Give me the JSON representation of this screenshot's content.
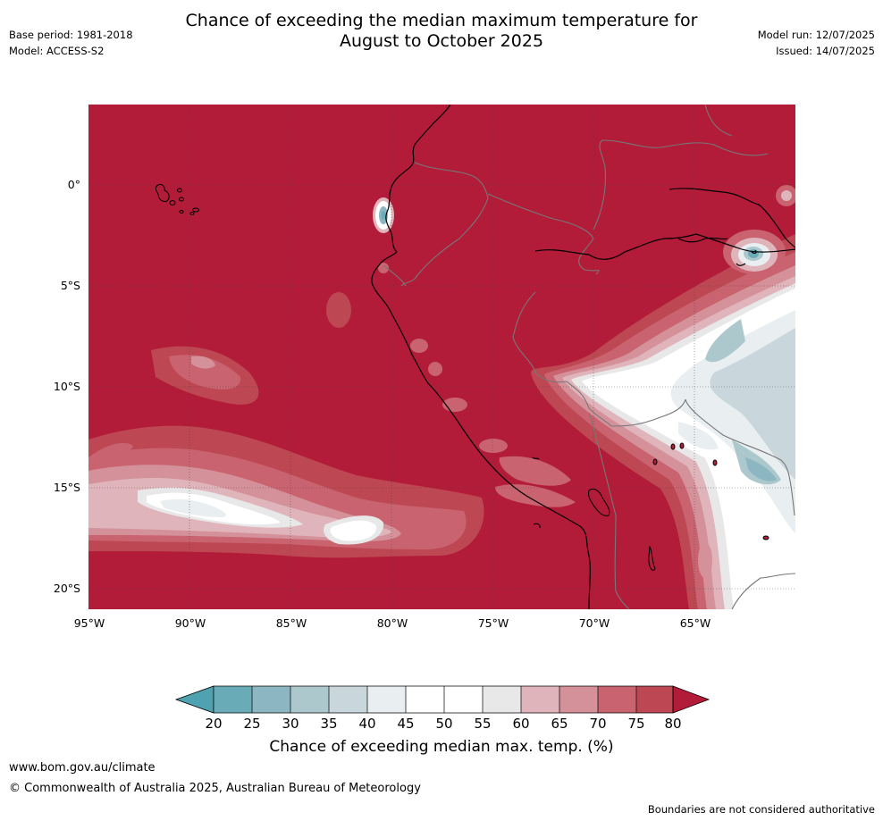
{
  "header": {
    "title_line1": "Chance of exceeding the median maximum temperature for",
    "title_line2": "August to October 2025",
    "base_period": "Base period: 1981-2018",
    "model": "Model: ACCESS-S2",
    "model_run": "Model run: 12/07/2025",
    "issued": "Issued: 14/07/2025"
  },
  "map": {
    "lat_labels": [
      "0°",
      "5°S",
      "10°S",
      "15°S",
      "20°S"
    ],
    "lon_labels": [
      "95°W",
      "90°W",
      "85°W",
      "80°W",
      "75°W",
      "70°W",
      "65°W"
    ],
    "background_color": "#b21c39",
    "coastline_color": "#000000",
    "border_color": "#777777"
  },
  "colorbar": {
    "title": "Chance of exceeding median max. temp. (%)",
    "tick_labels": [
      "20",
      "25",
      "30",
      "35",
      "40",
      "45",
      "50",
      "55",
      "60",
      "65",
      "70",
      "75",
      "80"
    ],
    "colors": [
      "#69acb8",
      "#8db6c3",
      "#acc8cd",
      "#c9d7dc",
      "#e9eef0",
      "#ffffff",
      "#ffffff",
      "#e9e8e9",
      "#dfb4bb",
      "#d49199",
      "#c8636f",
      "#bd4753"
    ],
    "under_color": "#4fa3b0",
    "over_color": "#b21c39"
  },
  "footer": {
    "url": "www.bom.gov.au/climate",
    "copyright": "© Commonwealth of Australia 2025, Australian Bureau of Meteorology",
    "note": "Boundaries are not considered authoritative"
  }
}
